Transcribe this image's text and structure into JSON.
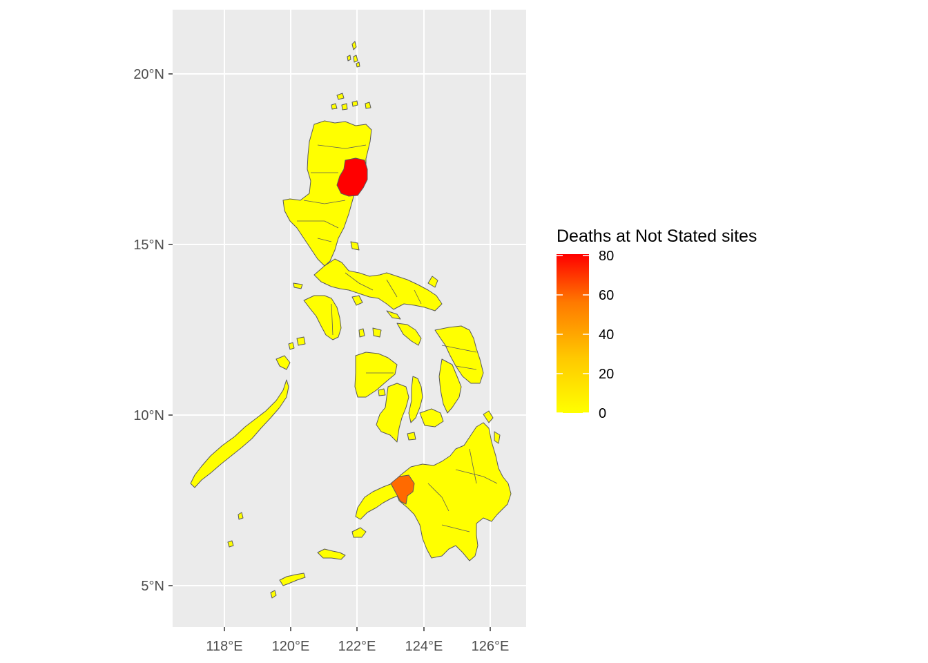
{
  "map": {
    "type": "choropleth",
    "region": "Philippines",
    "x_ticks": [
      "118°E",
      "120°E",
      "122°E",
      "124°E",
      "126°E"
    ],
    "y_ticks": [
      "20°N",
      "15°N",
      "10°N",
      "5°N"
    ],
    "lon_range": [
      116.8,
      127.0
    ],
    "lat_range": [
      3.8,
      21.8
    ],
    "panel_background": "#ebebeb",
    "grid_color": "#ffffff",
    "border_color": "#595959",
    "highlighted_regions": [
      {
        "name": "Isabela",
        "deaths": 80,
        "color": "#ff0000"
      },
      {
        "name": "Lanao del Norte",
        "deaths": 60,
        "color": "#ff6a00"
      }
    ],
    "other_regions_deaths": 0,
    "other_regions_color": "#ffff00"
  },
  "legend": {
    "title": "Deaths at Not Stated sites",
    "ticks": [
      "80",
      "60",
      "40",
      "20",
      "0"
    ],
    "tick_values": [
      80,
      60,
      40,
      20,
      0
    ],
    "range": [
      0,
      80
    ],
    "color_low": "#ffff00",
    "color_mid": "#ffb400",
    "color_high": "#ff0000",
    "placement": "right"
  }
}
